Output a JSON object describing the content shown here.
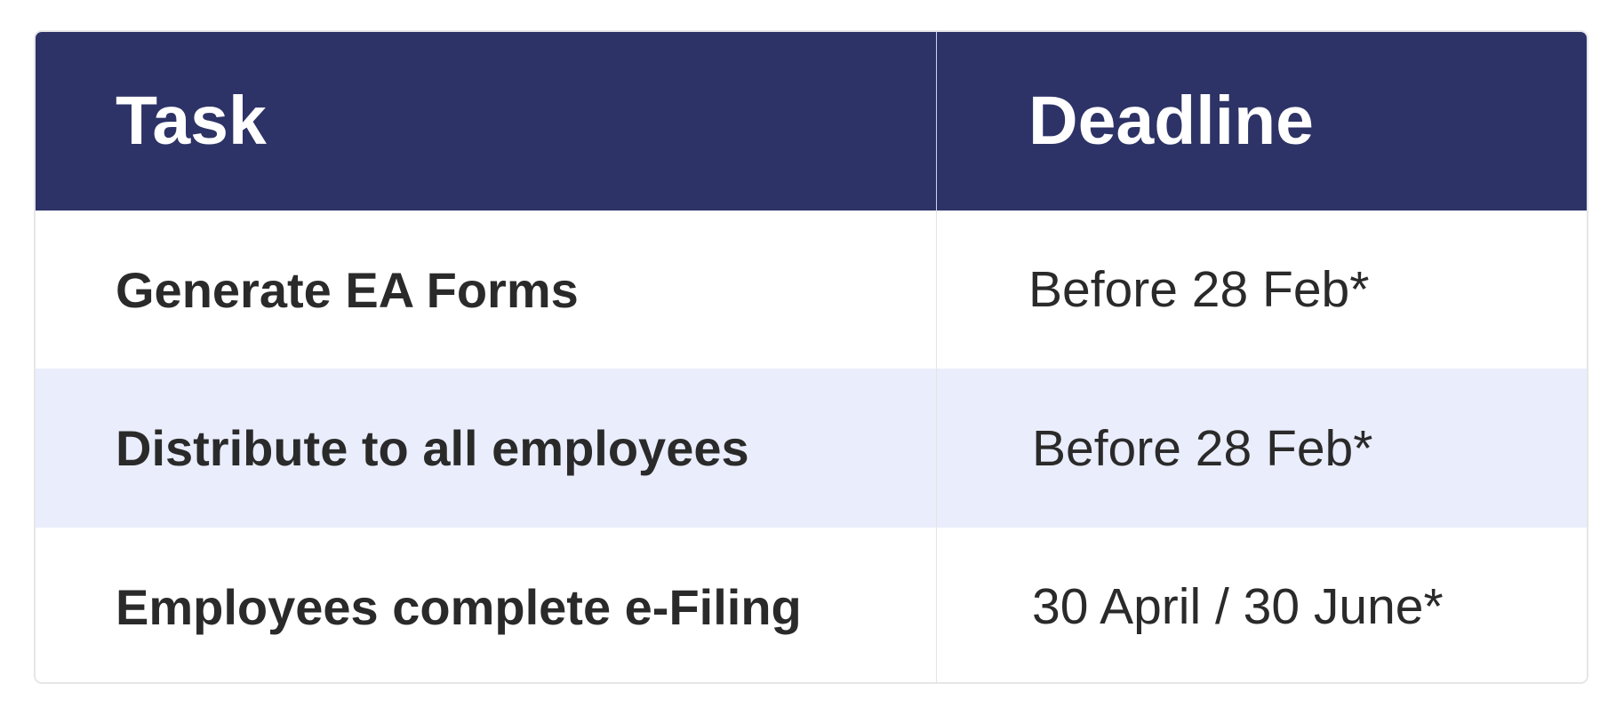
{
  "header": {
    "task": "Task",
    "deadline": "Deadline"
  },
  "rows": [
    {
      "task": "Generate EA Forms",
      "deadline": "Before 28 Feb*"
    },
    {
      "task": "Distribute to all employees",
      "deadline": "Before 28 Feb*"
    },
    {
      "task": "Employees complete e-Filing",
      "deadline": "30 April / 30 June*"
    }
  ],
  "colors": {
    "header_bg": "#2d3366",
    "stripe_bg": "#eaedfb",
    "text": "#2a2a2a"
  }
}
